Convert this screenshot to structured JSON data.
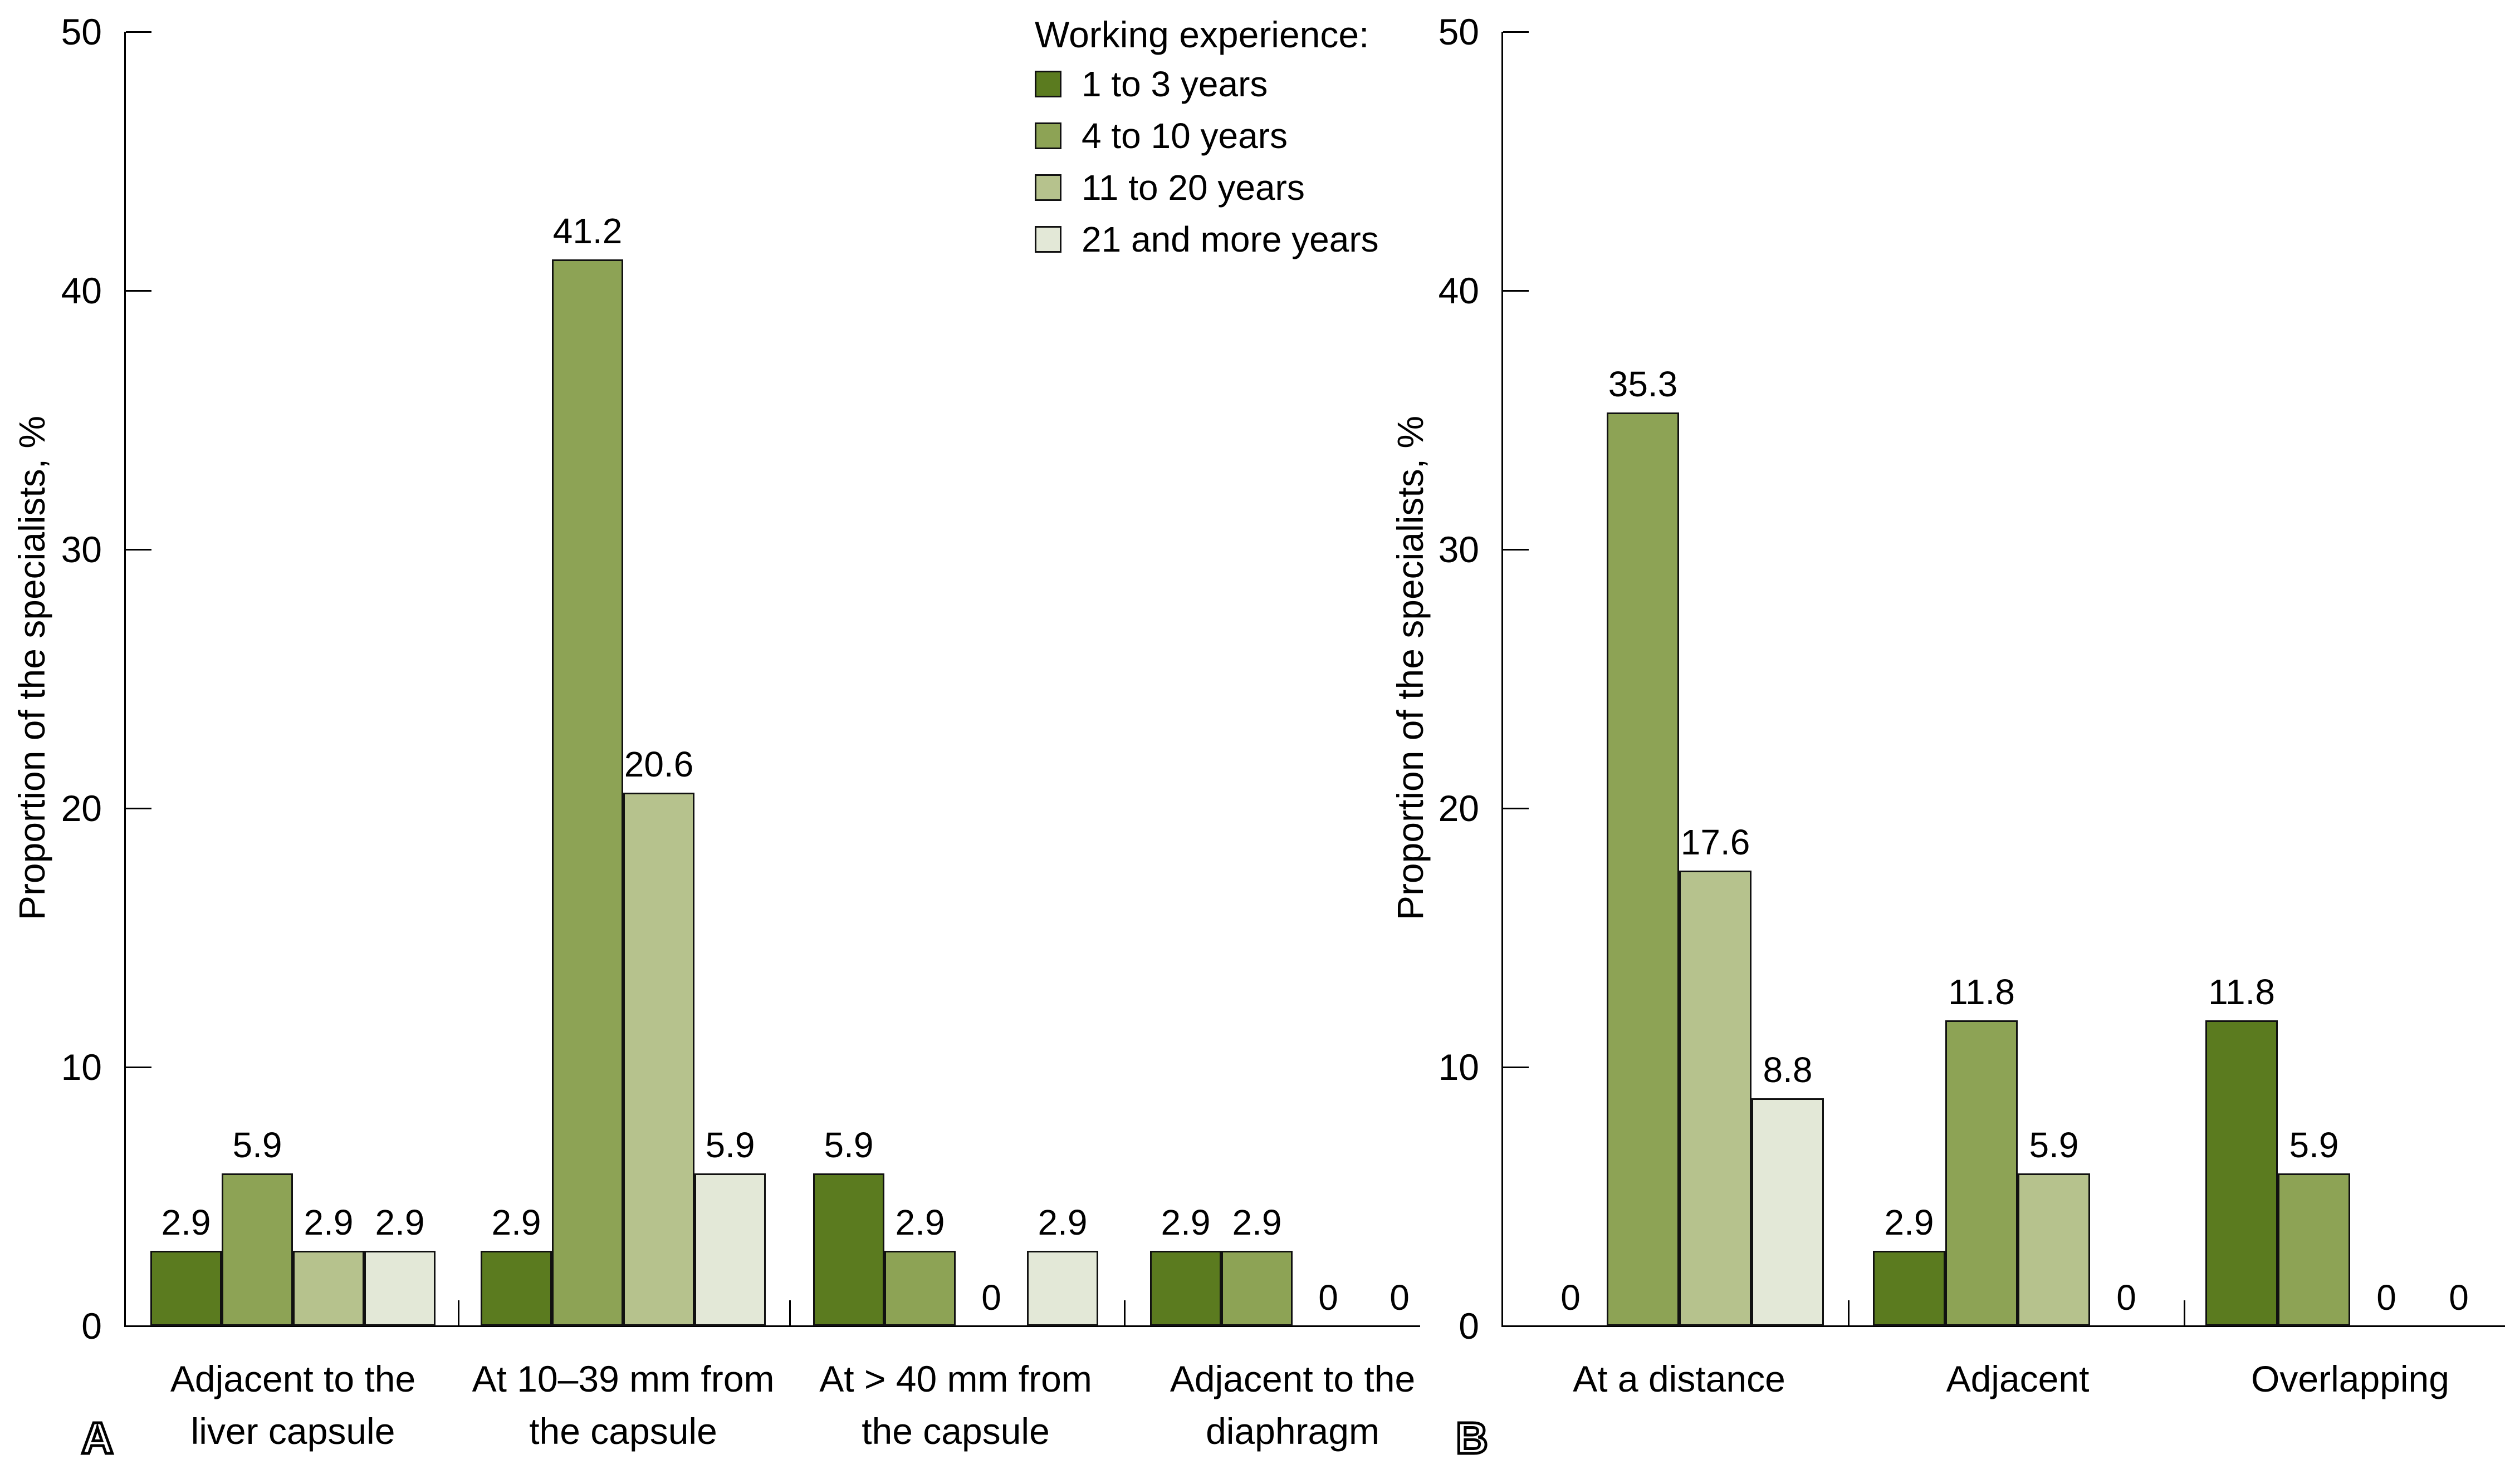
{
  "legend": {
    "title": "Working experience:",
    "items": [
      {
        "label": "1 to 3 years",
        "color": "#5b7b1f"
      },
      {
        "label": "4 to 10 years",
        "color": "#8da355"
      },
      {
        "label": "11 to 20 years",
        "color": "#b6c28d"
      },
      {
        "label": "21 and more years",
        "color": "#e3e8d7"
      }
    ]
  },
  "chart_data": [
    {
      "type": "bar",
      "panel_label": "A",
      "title": "",
      "xlabel": "",
      "ylabel": "Proportion of the specialists, %",
      "ylim": [
        0,
        50
      ],
      "yticks": [
        0,
        10,
        20,
        30,
        40,
        50
      ],
      "grid": false,
      "legend_position": "top-center-of-figure",
      "categories": [
        "Adjacent to the\nliver capsule",
        "At 10–39 mm from\nthe capsule",
        "At > 40 mm from\nthe capsule",
        "Adjacent to the\ndiaphragm"
      ],
      "series": [
        {
          "name": "1 to 3 years",
          "color": "#5b7b1f",
          "values": [
            2.9,
            2.9,
            5.9,
            2.9
          ]
        },
        {
          "name": "4 to 10 years",
          "color": "#8da355",
          "values": [
            5.9,
            41.2,
            2.9,
            2.9
          ]
        },
        {
          "name": "11 to 20 years",
          "color": "#b6c28d",
          "values": [
            2.9,
            20.6,
            0,
            0
          ]
        },
        {
          "name": "21 and more years",
          "color": "#e3e8d7",
          "values": [
            2.9,
            5.9,
            2.9,
            0
          ]
        }
      ]
    },
    {
      "type": "bar",
      "panel_label": "B",
      "title": "",
      "xlabel": "",
      "ylabel": "Proportion of the specialists, %",
      "ylim": [
        0,
        50
      ],
      "yticks": [
        0,
        10,
        20,
        30,
        40,
        50
      ],
      "grid": false,
      "categories": [
        "At a distance",
        "Adjacent",
        "Overlapping"
      ],
      "series": [
        {
          "name": "1 to 3 years",
          "color": "#5b7b1f",
          "values": [
            0,
            2.9,
            11.8
          ]
        },
        {
          "name": "4 to 10 years",
          "color": "#8da355",
          "values": [
            35.3,
            11.8,
            5.9
          ]
        },
        {
          "name": "11 to 20 years",
          "color": "#b6c28d",
          "values": [
            17.6,
            5.9,
            0
          ]
        },
        {
          "name": "21 and more years",
          "color": "#e3e8d7",
          "values": [
            8.8,
            0,
            0
          ]
        }
      ]
    }
  ]
}
